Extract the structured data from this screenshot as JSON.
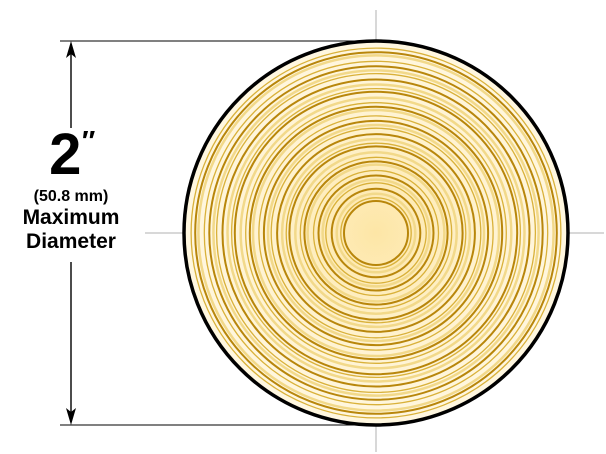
{
  "dimension": {
    "value": "2",
    "unit_mark": "″",
    "metric": "(50.8 mm)",
    "line1": "Maximum",
    "line2": "Diameter"
  },
  "colors": {
    "ring_dark": "#b8860b",
    "ring_mid": "#d9b13a",
    "ring_light": "#f2d98a",
    "fill_center": "#fde9b0",
    "fill_outer": "#fff7e0",
    "outline": "#000000",
    "guide": "#b0b0b0"
  }
}
